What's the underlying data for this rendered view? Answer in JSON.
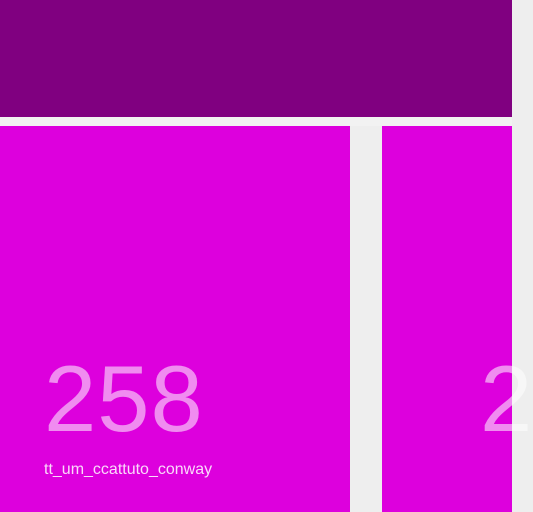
{
  "colors": {
    "topbar": "#800080",
    "tile": "#dd00dd",
    "background": "#eeeeee"
  },
  "tiles": [
    {
      "count": "258",
      "label": "tt_um_ccattuto_conway"
    },
    {
      "count": "2",
      "label": ""
    }
  ]
}
